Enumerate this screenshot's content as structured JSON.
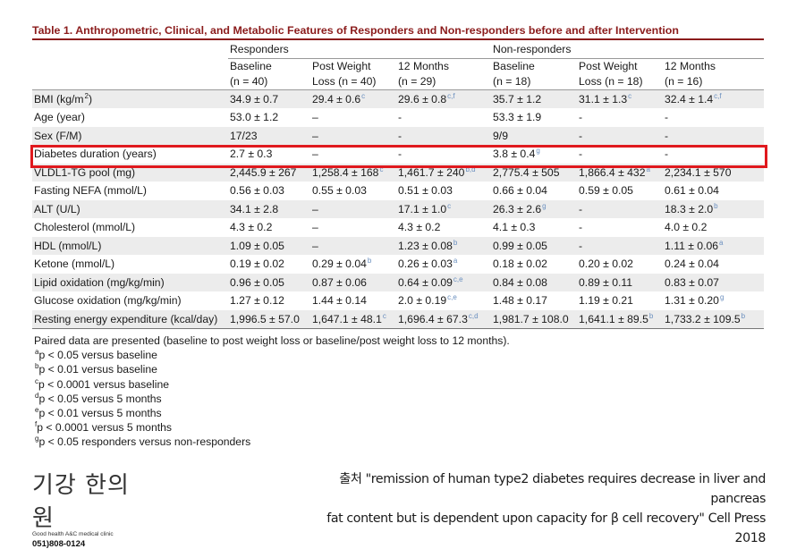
{
  "table": {
    "title": "Table 1.  Anthropometric, Clinical, and Metabolic Features of Responders and Non-responders before and after Intervention",
    "groups": [
      "Responders",
      "Non-responders"
    ],
    "columns": [
      {
        "line1": "Baseline",
        "line2": "(n = 40)"
      },
      {
        "line1": "Post Weight",
        "line2": "Loss (n = 40)"
      },
      {
        "line1": "12 Months",
        "line2": "(n = 29)"
      },
      {
        "line1": "Baseline",
        "line2": "(n = 18)"
      },
      {
        "line1": "Post Weight",
        "line2": "Loss (n = 18)"
      },
      {
        "line1": "12 Months",
        "line2": "(n = 16)"
      }
    ],
    "rows": [
      {
        "label": "BMI (kg/m",
        "label_sup": "2",
        "label_tail": ")",
        "cells": [
          {
            "v": "34.9 ± 0.7",
            "s": ""
          },
          {
            "v": "29.4 ± 0.6",
            "s": "c"
          },
          {
            "v": "29.6 ± 0.8",
            "s": "c,f"
          },
          {
            "v": "35.7 ± 1.2",
            "s": ""
          },
          {
            "v": "31.1 ± 1.3",
            "s": "c"
          },
          {
            "v": "32.4 ± 1.4",
            "s": "c,f"
          }
        ]
      },
      {
        "label": "Age (year)",
        "label_sup": "",
        "label_tail": "",
        "cells": [
          {
            "v": "53.0 ± 1.2",
            "s": ""
          },
          {
            "v": "–",
            "s": ""
          },
          {
            "v": "-",
            "s": ""
          },
          {
            "v": "53.3 ± 1.9",
            "s": ""
          },
          {
            "v": "-",
            "s": ""
          },
          {
            "v": "-",
            "s": ""
          }
        ]
      },
      {
        "label": "Sex (F/M)",
        "label_sup": "",
        "label_tail": "",
        "cells": [
          {
            "v": "17/23",
            "s": ""
          },
          {
            "v": "–",
            "s": ""
          },
          {
            "v": "-",
            "s": ""
          },
          {
            "v": "9/9",
            "s": ""
          },
          {
            "v": "-",
            "s": ""
          },
          {
            "v": "-",
            "s": ""
          }
        ]
      },
      {
        "label": "Diabetes duration (years)",
        "label_sup": "",
        "label_tail": "",
        "cells": [
          {
            "v": "2.7 ± 0.3",
            "s": ""
          },
          {
            "v": "–",
            "s": ""
          },
          {
            "v": "-",
            "s": ""
          },
          {
            "v": "3.8 ± 0.4",
            "s": "g"
          },
          {
            "v": "-",
            "s": ""
          },
          {
            "v": "-",
            "s": ""
          }
        ]
      },
      {
        "label": "VLDL1-TG pool (mg)",
        "label_sup": "",
        "label_tail": "",
        "cells": [
          {
            "v": "2,445.9 ± 267",
            "s": ""
          },
          {
            "v": "1,258.4 ± 168",
            "s": "c"
          },
          {
            "v": "1,461.7 ± 240",
            "s": "b,d"
          },
          {
            "v": "2,775.4 ± 505",
            "s": ""
          },
          {
            "v": "1,866.4 ± 432",
            "s": "a"
          },
          {
            "v": "2,234.1 ± 570",
            "s": ""
          }
        ]
      },
      {
        "label": "Fasting NEFA (mmol/L)",
        "label_sup": "",
        "label_tail": "",
        "cells": [
          {
            "v": "0.56 ± 0.03",
            "s": ""
          },
          {
            "v": "0.55 ± 0.03",
            "s": ""
          },
          {
            "v": "0.51 ± 0.03",
            "s": ""
          },
          {
            "v": "0.66 ± 0.04",
            "s": ""
          },
          {
            "v": "0.59 ± 0.05",
            "s": ""
          },
          {
            "v": "0.61 ± 0.04",
            "s": ""
          }
        ]
      },
      {
        "label": "ALT (U/L)",
        "label_sup": "",
        "label_tail": "",
        "cells": [
          {
            "v": "34.1 ± 2.8",
            "s": ""
          },
          {
            "v": "–",
            "s": ""
          },
          {
            "v": "17.1 ± 1.0",
            "s": "c"
          },
          {
            "v": "26.3 ± 2.6",
            "s": "g"
          },
          {
            "v": "-",
            "s": ""
          },
          {
            "v": "18.3 ± 2.0",
            "s": "b"
          }
        ]
      },
      {
        "label": "Cholesterol (mmol/L)",
        "label_sup": "",
        "label_tail": "",
        "cells": [
          {
            "v": "4.3 ± 0.2",
            "s": ""
          },
          {
            "v": "–",
            "s": ""
          },
          {
            "v": "4.3 ± 0.2",
            "s": ""
          },
          {
            "v": "4.1 ± 0.3",
            "s": ""
          },
          {
            "v": "-",
            "s": ""
          },
          {
            "v": "4.0 ± 0.2",
            "s": ""
          }
        ]
      },
      {
        "label": "HDL (mmol/L)",
        "label_sup": "",
        "label_tail": "",
        "cells": [
          {
            "v": "1.09 ± 0.05",
            "s": ""
          },
          {
            "v": "–",
            "s": ""
          },
          {
            "v": "1.23 ± 0.08",
            "s": "b"
          },
          {
            "v": "0.99 ± 0.05",
            "s": ""
          },
          {
            "v": "-",
            "s": ""
          },
          {
            "v": "1.11 ± 0.06",
            "s": "a"
          }
        ]
      },
      {
        "label": "Ketone (mmol/L)",
        "label_sup": "",
        "label_tail": "",
        "cells": [
          {
            "v": "0.19 ± 0.02",
            "s": ""
          },
          {
            "v": "0.29 ± 0.04",
            "s": "b"
          },
          {
            "v": "0.26 ± 0.03",
            "s": "a"
          },
          {
            "v": "0.18 ± 0.02",
            "s": ""
          },
          {
            "v": "0.20 ± 0.02",
            "s": ""
          },
          {
            "v": "0.24 ± 0.04",
            "s": ""
          }
        ]
      },
      {
        "label": "Lipid oxidation (mg/kg/min)",
        "label_sup": "",
        "label_tail": "",
        "cells": [
          {
            "v": "0.96 ± 0.05",
            "s": ""
          },
          {
            "v": "0.87 ± 0.06",
            "s": ""
          },
          {
            "v": "0.64 ± 0.09",
            "s": "c,e"
          },
          {
            "v": "0.84 ± 0.08",
            "s": ""
          },
          {
            "v": "0.89 ± 0.11",
            "s": ""
          },
          {
            "v": "0.83 ± 0.07",
            "s": ""
          }
        ]
      },
      {
        "label": "Glucose oxidation (mg/kg/min)",
        "label_sup": "",
        "label_tail": "",
        "cells": [
          {
            "v": "1.27 ± 0.12",
            "s": ""
          },
          {
            "v": "1.44 ± 0.14",
            "s": ""
          },
          {
            "v": "2.0 ± 0.19",
            "s": "c,e"
          },
          {
            "v": "1.48 ± 0.17",
            "s": ""
          },
          {
            "v": "1.19 ± 0.21",
            "s": ""
          },
          {
            "v": "1.31 ± 0.20",
            "s": "g"
          }
        ]
      },
      {
        "label": "Resting energy expenditure (kcal/day)",
        "label_sup": "",
        "label_tail": "",
        "cells": [
          {
            "v": "1,996.5 ± 57.0",
            "s": ""
          },
          {
            "v": "1,647.1 ± 48.1",
            "s": "c"
          },
          {
            "v": "1,696.4 ± 67.3",
            "s": "c,d"
          },
          {
            "v": "1,981.7 ± 108.0",
            "s": ""
          },
          {
            "v": "1,641.1 ± 89.5",
            "s": "b"
          },
          {
            "v": "1,733.2 ± 109.5",
            "s": "b"
          }
        ]
      }
    ],
    "highlighted_row": "Diabetes duration (years)"
  },
  "notes": {
    "intro": "Paired data are presented (baseline to post weight loss or baseline/post weight loss to 12 months).",
    "items": [
      {
        "mark": "a",
        "text": "p < 0.05 versus baseline"
      },
      {
        "mark": "b",
        "text": "p < 0.01 versus baseline"
      },
      {
        "mark": "c",
        "text": "p < 0.0001 versus baseline"
      },
      {
        "mark": "d",
        "text": "p < 0.05 versus 5 months"
      },
      {
        "mark": "e",
        "text": "p < 0.01 versus 5 months"
      },
      {
        "mark": "f",
        "text": "p < 0.0001 versus 5 months"
      },
      {
        "mark": "g",
        "text": "p < 0.05 responders versus non-responders"
      }
    ]
  },
  "clinic": {
    "logo_text": "기강 한의원",
    "subtitle": "Good health A&C medical clinic",
    "phone": "051)808-0124"
  },
  "citation": {
    "line1": "출처 \"remission of human type2 diabetes requires decrease in liver and pancreas",
    "line2": "fat content but is dependent upon capacity for β cell recovery\" Cell Press 2018"
  },
  "colors": {
    "title": "#8b1c1c",
    "highlight_box": "#e0191e",
    "superscript": "#6a8fbf",
    "row_shade": "#ececec"
  }
}
